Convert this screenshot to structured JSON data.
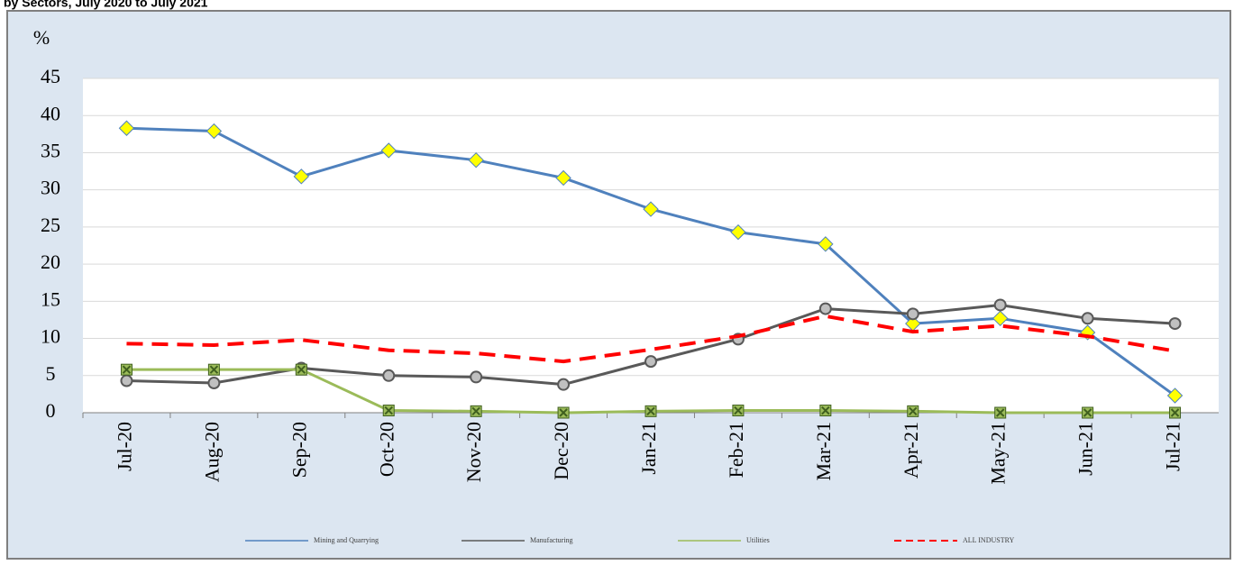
{
  "chart_data": {
    "type": "line",
    "title": "by Sectors, July 2020 to July 2021",
    "ylabel": "%",
    "categories": [
      "Jul-20",
      "Aug-20",
      "Sep-20",
      "Oct-20",
      "Nov-20",
      "Dec-20",
      "Jan-21",
      "Feb-21",
      "Mar-21",
      "Apr-21",
      "May-21",
      "Jun-21",
      "Jul-21"
    ],
    "ylim": [
      0,
      45
    ],
    "yticks": [
      0,
      5,
      10,
      15,
      20,
      25,
      30,
      35,
      40,
      45
    ],
    "grid": true,
    "legend": "bottom",
    "series": [
      {
        "name": "Mining and Quarrying",
        "color": "#4f81bd",
        "marker": "diamond",
        "marker_color": "#ffff00",
        "values": [
          38.3,
          37.9,
          31.8,
          35.3,
          34.0,
          31.6,
          27.4,
          24.3,
          22.7,
          12.0,
          12.7,
          10.8,
          2.3
        ]
      },
      {
        "name": "Manufacturing",
        "color": "#595959",
        "marker": "circle",
        "marker_color": "#c0c0c0",
        "values": [
          4.3,
          4.0,
          6.0,
          5.0,
          4.8,
          3.8,
          6.9,
          9.9,
          14.0,
          13.3,
          14.5,
          12.7,
          12.0
        ]
      },
      {
        "name": "Utilities",
        "color": "#9bbb59",
        "marker": "square-x",
        "marker_color": "#3f5f1f",
        "values": [
          5.8,
          5.8,
          5.8,
          0.3,
          0.2,
          0.0,
          0.2,
          0.3,
          0.3,
          0.2,
          0.0,
          0.0,
          0.0
        ]
      },
      {
        "name": "ALL INDUSTRY",
        "color": "#ff0000",
        "dash": true,
        "values": [
          9.3,
          9.1,
          9.8,
          8.4,
          8.0,
          6.9,
          8.5,
          10.3,
          13.0,
          10.9,
          11.7,
          10.3,
          8.3
        ]
      }
    ]
  }
}
